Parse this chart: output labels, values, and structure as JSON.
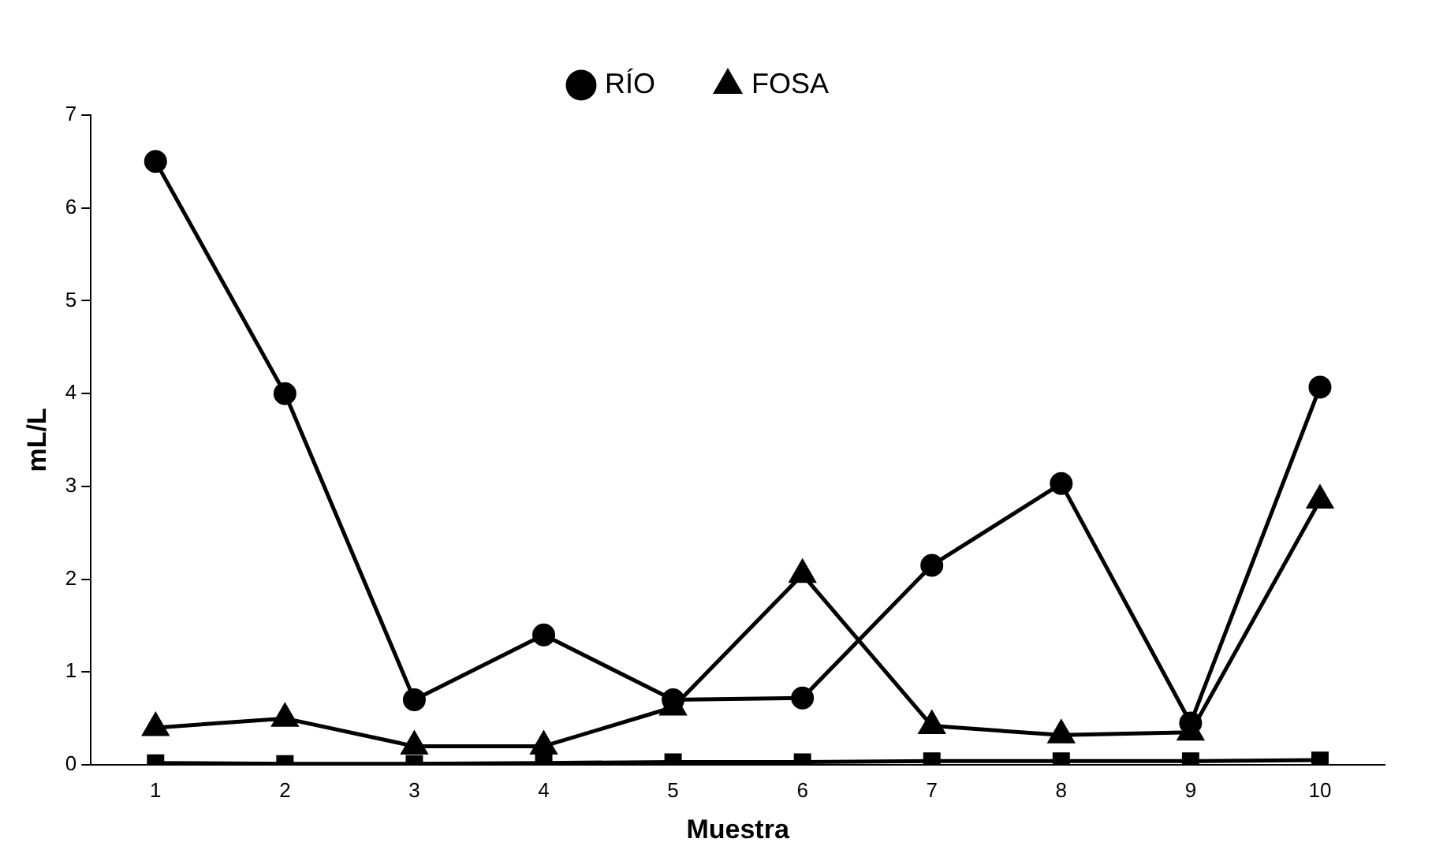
{
  "chart_data": {
    "type": "line",
    "xlabel": "Muestra",
    "ylabel": "mL/L",
    "categories": [
      "1",
      "2",
      "3",
      "4",
      "5",
      "6",
      "7",
      "8",
      "9",
      "10"
    ],
    "series": [
      {
        "name": "RÍO",
        "color": "#000000",
        "marker": "circle",
        "values": [
          6.5,
          4.0,
          0.7,
          1.4,
          0.7,
          0.72,
          2.15,
          3.03,
          0.45,
          4.07
        ]
      },
      {
        "name": "FOSA",
        "color": "#000000",
        "marker": "triangle",
        "values": [
          0.4,
          0.5,
          0.2,
          0.2,
          0.62,
          2.05,
          0.42,
          0.32,
          0.35,
          2.85
        ]
      },
      {
        "color": "#000000",
        "marker": "square",
        "values": [
          0.02,
          0.01,
          0.01,
          0.02,
          0.03,
          0.03,
          0.04,
          0.04,
          0.04,
          0.05
        ]
      }
    ],
    "ylim": [
      0,
      7
    ],
    "yticks": [
      0,
      1,
      2,
      3,
      4,
      5,
      6,
      7
    ],
    "grid": false,
    "legend": "top",
    "line_style": "solid"
  }
}
